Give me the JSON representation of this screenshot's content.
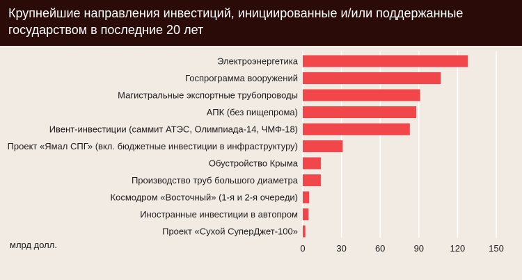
{
  "header": {
    "title": "Крупнейшие направления инвестиций, инициированные и/или поддержанные государством в последние 20 лет"
  },
  "colors": {
    "header_bg": "#2a0b08",
    "page_bg": "#f2ebe4",
    "bar": "#f2474a",
    "grid": "#ffffff"
  },
  "chart_data": {
    "type": "bar",
    "orientation": "horizontal",
    "title": "Крупнейшие направления инвестиций, инициированные и/или поддержанные государством в последние 20 лет",
    "unit_label": "млрд долл.",
    "categories": [
      "Электроэнергетика",
      "Госпрограмма вооружений",
      "Магистральные экспортные трубопроводы",
      "АПК (без пищепрома)",
      "Ивент-инвестиции (саммит АТЭС, Олимпиада-14, ЧМФ-18)",
      "Проект «Ямал СПГ» (вкл. бюджетные инвестиции в инфраструктуру)",
      "Обустройство Крыма",
      "Производство труб большого диаметра",
      "Космодром «Восточный» (1-я и 2-я очереди)",
      "Иностранные инвестиции в автопром",
      "Проект «Сухой СуперДжет-100»"
    ],
    "values": [
      128,
      107,
      91,
      88,
      83,
      31,
      14,
      14,
      5,
      4.5,
      2
    ],
    "xlim": [
      0,
      150
    ],
    "xticks": [
      0,
      30,
      60,
      90,
      120,
      150
    ],
    "grid": true
  }
}
